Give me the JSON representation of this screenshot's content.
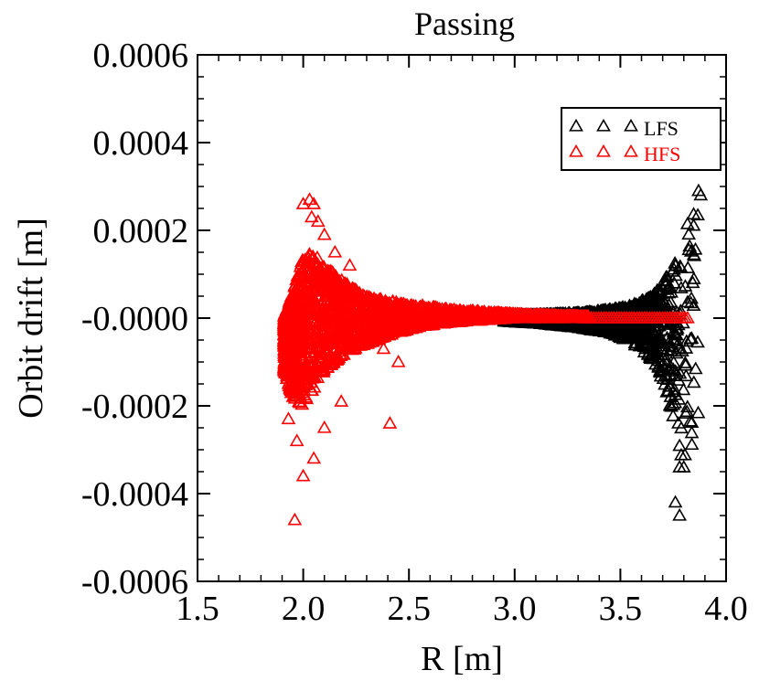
{
  "chart_data": {
    "type": "scatter",
    "title": "Passing",
    "xlabel": "R [m]",
    "ylabel": "Orbit drift [m]",
    "xlim": [
      1.5,
      4.0
    ],
    "ylim": [
      -0.0006,
      0.0006
    ],
    "xticks": [
      "1.5",
      "2.0",
      "2.5",
      "3.0",
      "3.5",
      "4.0"
    ],
    "yticks": [
      "-0.0006",
      "-0.0004",
      "-0.0002",
      "-0.0000",
      "0.0002",
      "0.0004",
      "0.0006"
    ],
    "marker": "triangle-open",
    "legend_position": "top-right",
    "series": [
      {
        "name": "LFS",
        "color": "#000000",
        "envelope": [
          {
            "x": 2.95,
            "upper": 5e-06,
            "lower": -8e-06
          },
          {
            "x": 3.1,
            "upper": 8e-06,
            "lower": -1.2e-05
          },
          {
            "x": 3.3,
            "upper": 1.2e-05,
            "lower": -2.2e-05
          },
          {
            "x": 3.45,
            "upper": 2e-05,
            "lower": -3.5e-05
          },
          {
            "x": 3.55,
            "upper": 3e-05,
            "lower": -5.5e-05
          },
          {
            "x": 3.62,
            "upper": 4.5e-05,
            "lower": -8e-05
          },
          {
            "x": 3.68,
            "upper": 7e-05,
            "lower": -0.00012
          },
          {
            "x": 3.72,
            "upper": 0.0001,
            "lower": -0.00017
          },
          {
            "x": 3.76,
            "upper": 0.00014,
            "lower": -0.00025
          },
          {
            "x": 3.79,
            "upper": 0.00019,
            "lower": -0.00032
          },
          {
            "x": 3.82,
            "upper": 0.00024,
            "lower": -0.00033
          },
          {
            "x": 3.85,
            "upper": 0.00028,
            "lower": -0.0003
          },
          {
            "x": 3.87,
            "upper": 0.00029,
            "lower": -0.00025
          },
          {
            "x": 3.885,
            "upper": 0.00027,
            "lower": -0.0002
          }
        ],
        "outliers": [
          {
            "x": 3.76,
            "y": -0.00042
          },
          {
            "x": 3.78,
            "y": -0.00045
          },
          {
            "x": 3.8,
            "y": -0.00034
          },
          {
            "x": 3.78,
            "y": -0.00034
          },
          {
            "x": 3.87,
            "y": 0.00029
          },
          {
            "x": 3.88,
            "y": 0.00028
          }
        ]
      },
      {
        "name": "HFS",
        "color": "#ff0000",
        "envelope": [
          {
            "x": 1.91,
            "upper": 5e-06,
            "lower": -0.00012
          },
          {
            "x": 1.95,
            "upper": 6e-05,
            "lower": -0.00018
          },
          {
            "x": 2.0,
            "upper": 0.00014,
            "lower": -0.0002
          },
          {
            "x": 2.05,
            "upper": 0.00015,
            "lower": -0.00016
          },
          {
            "x": 2.1,
            "upper": 0.00012,
            "lower": -0.00012
          },
          {
            "x": 2.2,
            "upper": 8e-05,
            "lower": -8e-05
          },
          {
            "x": 2.3,
            "upper": 5e-05,
            "lower": -6e-05
          },
          {
            "x": 2.4,
            "upper": 4e-05,
            "lower": -4e-05
          },
          {
            "x": 2.55,
            "upper": 3e-05,
            "lower": -2e-05
          },
          {
            "x": 2.7,
            "upper": 2e-05,
            "lower": -1e-05
          },
          {
            "x": 2.85,
            "upper": 1.5e-05,
            "lower": -5e-06
          },
          {
            "x": 3.0,
            "upper": 1e-05,
            "lower": 0.0
          },
          {
            "x": 3.2,
            "upper": 6e-06,
            "lower": 0.0
          },
          {
            "x": 3.35,
            "upper": 4e-06,
            "lower": 0.0
          }
        ],
        "outliers": [
          {
            "x": 2.0,
            "y": 0.00026
          },
          {
            "x": 2.03,
            "y": 0.00027
          },
          {
            "x": 2.05,
            "y": 0.00026
          },
          {
            "x": 2.04,
            "y": 0.00023
          },
          {
            "x": 2.07,
            "y": 0.00022
          },
          {
            "x": 2.1,
            "y": 0.00019
          },
          {
            "x": 2.15,
            "y": 0.00015
          },
          {
            "x": 2.22,
            "y": 0.00012
          },
          {
            "x": 1.93,
            "y": -0.00023
          },
          {
            "x": 1.97,
            "y": -0.00028
          },
          {
            "x": 1.96,
            "y": -0.00046
          },
          {
            "x": 2.0,
            "y": -0.00036
          },
          {
            "x": 2.05,
            "y": -0.00032
          },
          {
            "x": 2.1,
            "y": -0.00025
          },
          {
            "x": 2.18,
            "y": -0.00019
          },
          {
            "x": 2.41,
            "y": -0.00024
          },
          {
            "x": 2.45,
            "y": -0.0001
          },
          {
            "x": 2.38,
            "y": -7e-05
          }
        ],
        "flat_line": {
          "x_start": 3.35,
          "x_end": 3.82,
          "y": 0.0
        }
      }
    ]
  }
}
